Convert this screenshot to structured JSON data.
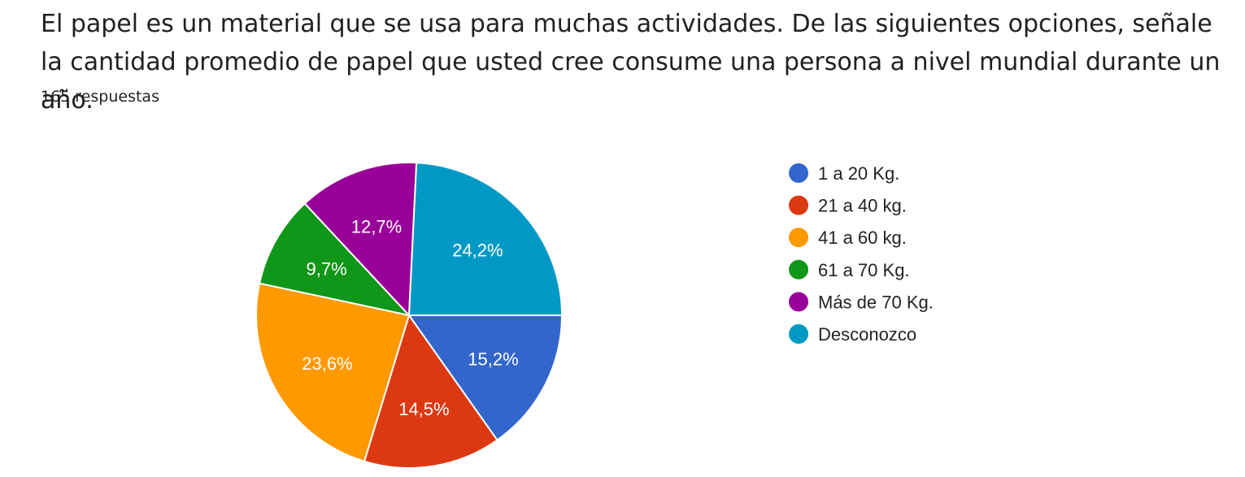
{
  "question": {
    "title": "El papel es un material que se usa para muchas actividades. De las siguientes opciones, señale la cantidad promedio de papel que usted cree consume una persona a nivel mundial durante un año.",
    "responses": "165 respuestas"
  },
  "chart_data": {
    "type": "pie",
    "title": "El papel es un material que se usa para muchas actividades. De las siguientes opciones, señale la cantidad promedio de papel que usted cree consume una persona a nivel mundial durante un año.",
    "categories": [
      "1 a 20 Kg.",
      "21 a 40 kg.",
      "41 a 60 kg.",
      "61 a 70 Kg.",
      "Más de 70 Kg.",
      "Desconozco"
    ],
    "values": [
      15.2,
      14.5,
      23.6,
      9.7,
      12.7,
      24.2
    ],
    "labels": [
      "15,2%",
      "14,5%",
      "23,6%",
      "9,7%",
      "12,7%",
      "24,2%"
    ],
    "colors": [
      "#3366cc",
      "#dc3912",
      "#ff9900",
      "#109618",
      "#990099",
      "#0099c6"
    ],
    "legend_position": "right",
    "start": "3 o'clock",
    "direction": "clockwise"
  }
}
